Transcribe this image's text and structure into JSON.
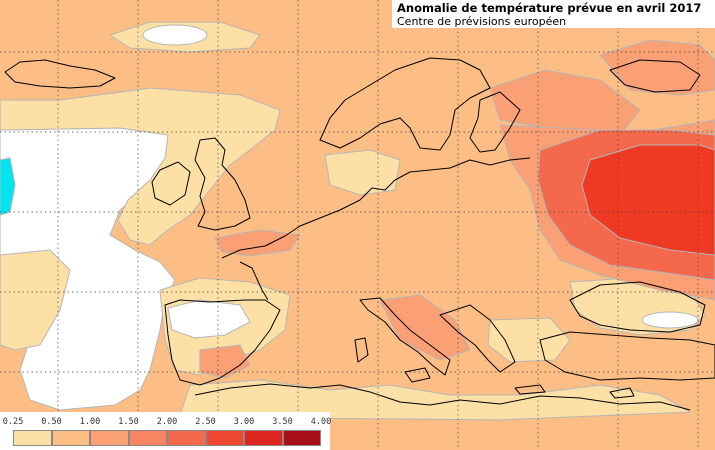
{
  "title": "Anomalie de température prévue en avril 2017",
  "subtitle": "Centre de prévisions européen",
  "legend": {
    "ticks": [
      "0.25",
      "0.50",
      "1.00",
      "1.50",
      "2.00",
      "2.50",
      "3.00",
      "3.50",
      "4.00"
    ],
    "colors": [
      "#fde0a6",
      "#fdbe86",
      "#fb9f74",
      "#f78462",
      "#f4694c",
      "#ee4833",
      "#dd2620",
      "#a50f15"
    ]
  },
  "map_colors": {
    "no_anomaly": "#ffffff",
    "cold": "#00e5ee",
    "c1": "#fde0a6",
    "c2": "#fdbe86",
    "c3": "#fb9f74",
    "c5": "#f4694c",
    "c6": "#ee3a22"
  }
}
